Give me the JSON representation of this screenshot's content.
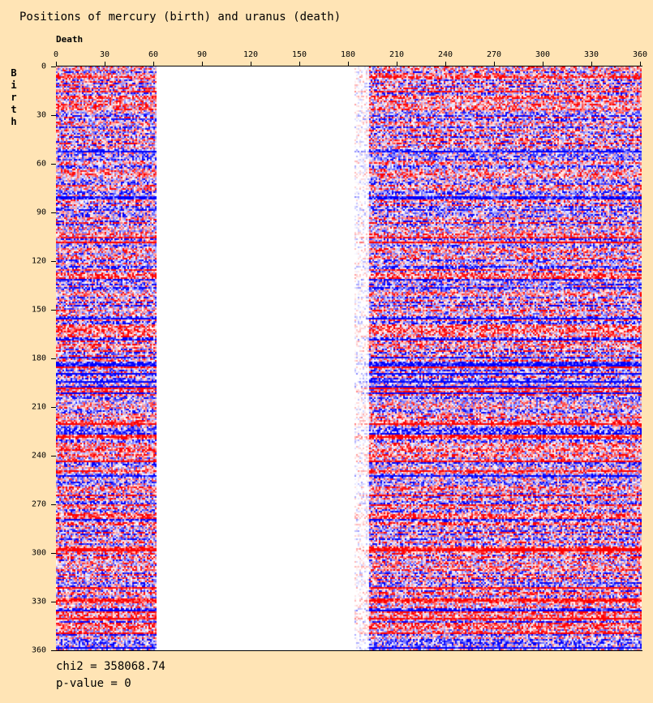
{
  "chart_data": {
    "type": "heatmap",
    "title": "Positions of mercury (birth) and uranus (death)",
    "xlabel": "Death",
    "ylabel": "Birth",
    "xlim": [
      0,
      360
    ],
    "ylim": [
      0,
      360
    ],
    "xticks": [
      "0",
      "30",
      "60",
      "90",
      "120",
      "150",
      "180",
      "210",
      "240",
      "270",
      "300",
      "330",
      "360"
    ],
    "yticks": [
      "0",
      "30",
      "60",
      "90",
      "120",
      "150",
      "180",
      "210",
      "240",
      "270",
      "300",
      "330",
      "360"
    ],
    "cell_size_degrees": 1,
    "colorscale": {
      "low": "#0000FF",
      "mid": "#FFFFFF",
      "high": "#FF0000"
    },
    "empty_death_range": [
      62,
      184
    ],
    "sparse_death_range": [
      184,
      193
    ],
    "stats": {
      "chi2": "chi2 = 358068.74",
      "pvalue": "p-value = 0"
    }
  },
  "colors": {
    "background": "#FFE4B5"
  }
}
